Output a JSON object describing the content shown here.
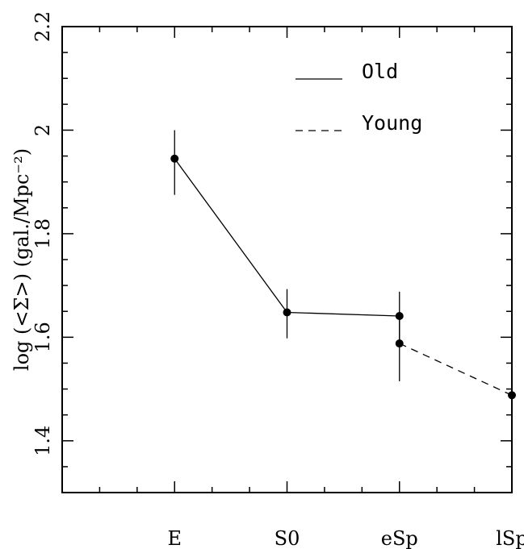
{
  "chart_data": {
    "type": "line",
    "categories": [
      "E",
      "S0",
      "eSp",
      "lSp"
    ],
    "ylabel": "log (<Σ>) (gal./Mpc⁻²)",
    "ylim": [
      1.3,
      2.2
    ],
    "yticks": [
      "1.4",
      "1.6",
      "1.8",
      "2",
      "2.2"
    ],
    "grid": false,
    "legend": {
      "position": "top-right"
    },
    "series": [
      {
        "name": "Old",
        "line_style": "solid",
        "points": [
          {
            "x": "E",
            "y": 1.945,
            "err_low": 1.875,
            "err_high": 2.0
          },
          {
            "x": "S0",
            "y": 1.648,
            "err_low": 1.598,
            "err_high": 1.693
          },
          {
            "x": "eSp",
            "y": 1.641,
            "err_low": 1.595,
            "err_high": 1.688
          }
        ]
      },
      {
        "name": "Young",
        "line_style": "dashed",
        "points": [
          {
            "x": "eSp",
            "y": 1.588,
            "err_low": 1.515,
            "err_high": 1.635
          },
          {
            "x": "lSp",
            "y": 1.488,
            "err_low": 1.42,
            "err_high": 1.55
          }
        ]
      }
    ]
  }
}
